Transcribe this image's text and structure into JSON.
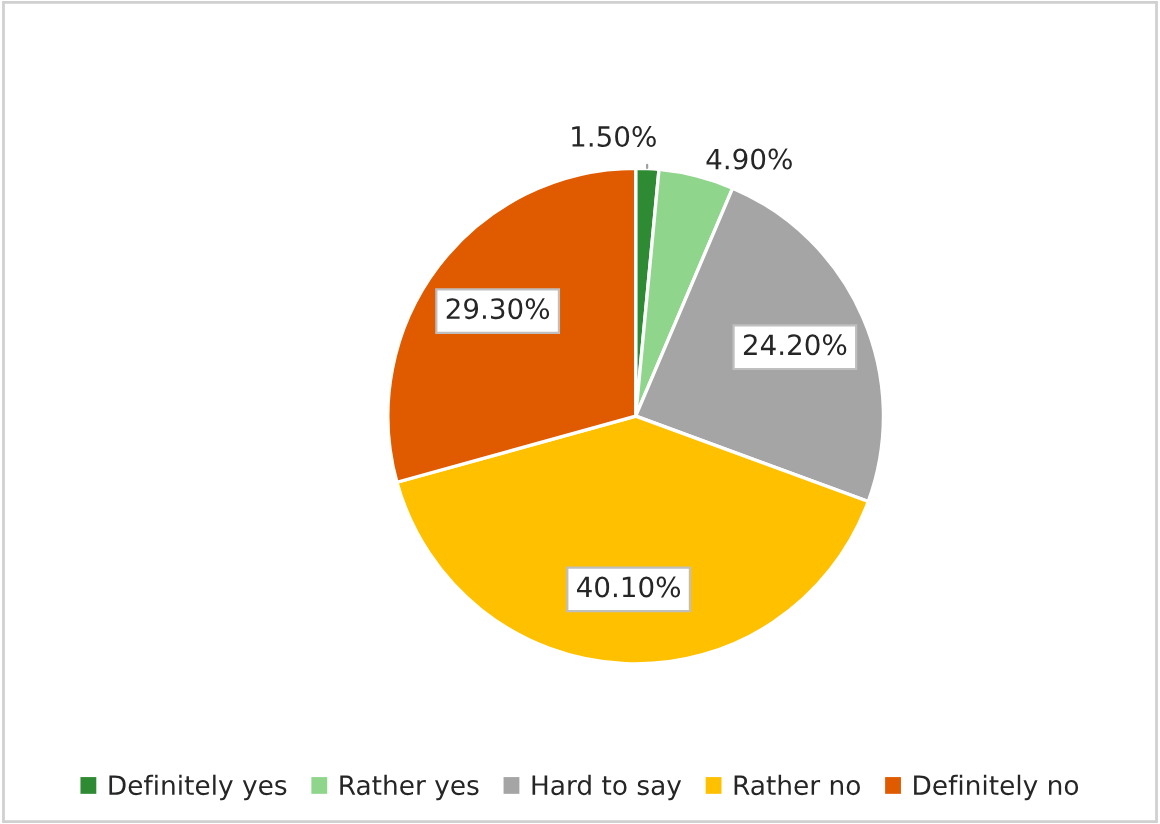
{
  "chart_data": {
    "type": "pie",
    "categories": [
      "Definitely yes",
      "Rather yes",
      "Hard to say",
      "Rather no",
      "Definitely no"
    ],
    "values": [
      1.5,
      4.9,
      24.2,
      40.1,
      29.3
    ],
    "colors": [
      "#2e8b34",
      "#8fd68c",
      "#a5a5a5",
      "#ffc000",
      "#e05a00"
    ],
    "value_labels": [
      "1.50%",
      "4.90%",
      "24.20%",
      "40.10%",
      "29.30%"
    ],
    "legend": "bottom"
  }
}
